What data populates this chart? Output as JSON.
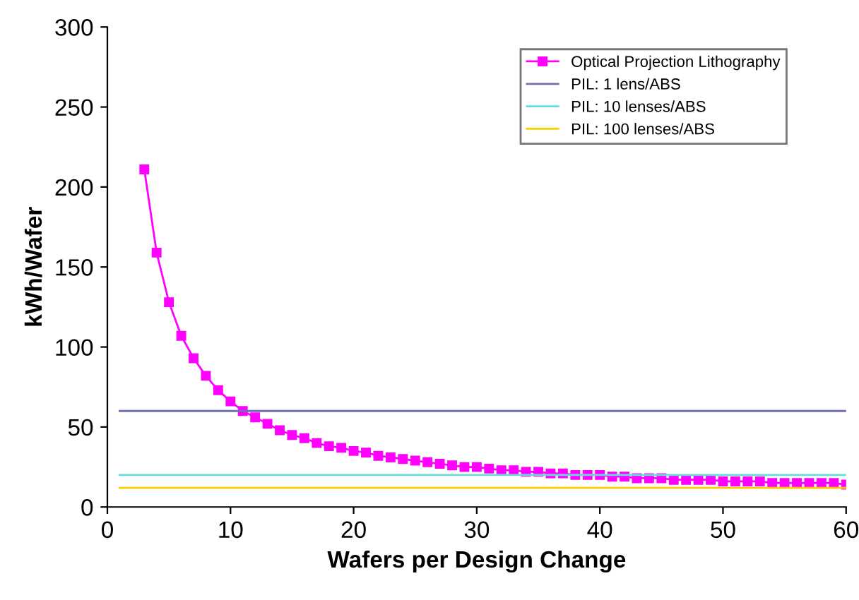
{
  "chart_data": {
    "type": "line",
    "xlabel": "Wafers per Design Change",
    "ylabel": "kWh/Wafer",
    "xlim": [
      0,
      60
    ],
    "xticks": [
      0,
      10,
      20,
      30,
      40,
      50,
      60
    ],
    "ylim": [
      0,
      300
    ],
    "yticks": [
      0,
      50,
      100,
      150,
      200,
      250,
      300
    ],
    "grid": false,
    "legend": "top right",
    "series": [
      {
        "name": "Optical Projection Lithography",
        "color": "#ff00ff",
        "marker": "square",
        "x": [
          3,
          4,
          5,
          6,
          7,
          8,
          9,
          10,
          11,
          12,
          13,
          14,
          15,
          16,
          17,
          18,
          19,
          20,
          21,
          22,
          23,
          24,
          25,
          26,
          27,
          28,
          29,
          30,
          31,
          32,
          33,
          34,
          35,
          36,
          37,
          38,
          39,
          40,
          41,
          42,
          43,
          44,
          45,
          46,
          47,
          48,
          49,
          50,
          51,
          52,
          53,
          54,
          55,
          56,
          57,
          58,
          59,
          60
        ],
        "values": [
          211,
          159,
          128,
          107,
          93,
          82,
          73,
          66,
          60,
          56,
          52,
          48,
          45,
          43,
          40,
          38,
          37,
          35,
          34,
          32,
          31,
          30,
          29,
          28,
          27,
          26,
          25,
          25,
          24,
          23,
          23,
          22,
          22,
          21,
          21,
          20,
          20,
          20,
          19,
          19,
          18,
          18,
          18,
          17,
          17,
          17,
          17,
          16,
          16,
          16,
          16,
          15,
          15,
          15,
          15,
          15,
          15,
          14
        ]
      },
      {
        "name": "PIL: 1 lens/ABS",
        "color": "#6f6fb3",
        "marker": "none",
        "x": [
          1,
          60
        ],
        "values": [
          60,
          60
        ]
      },
      {
        "name": "PIL: 10 lenses/ABS",
        "color": "#66dddd",
        "marker": "none",
        "x": [
          1,
          60
        ],
        "values": [
          20,
          20
        ]
      },
      {
        "name": "PIL: 100 lenses/ABS",
        "color": "#ffcc00",
        "marker": "none",
        "x": [
          1,
          60
        ],
        "values": [
          12,
          12
        ]
      }
    ]
  }
}
